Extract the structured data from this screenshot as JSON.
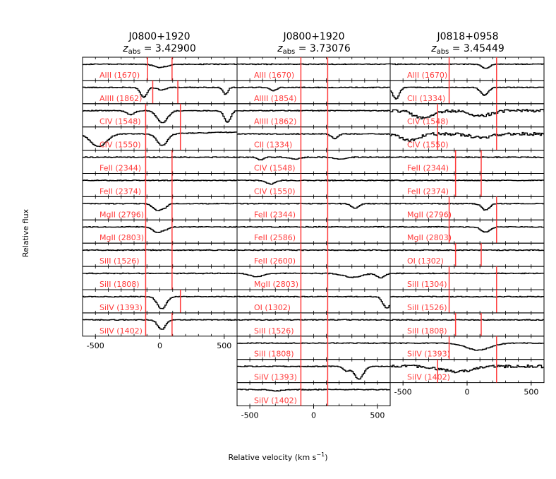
{
  "ylabel": "Relative flux",
  "xlabel": "Relative velocity (km s",
  "xlabel_sup": "−1",
  "xlabel_end": ")",
  "chart_data": [
    {
      "type": "line",
      "title_line1": "J0800+1920",
      "title_z_prefix": "z",
      "title_z_sub": "abs",
      "title_z_value": " = 3.42900",
      "xlim": [
        -600,
        600
      ],
      "xticks": [
        -500,
        0,
        500
      ],
      "xtick_labels": [
        "-500",
        "0",
        "500"
      ],
      "panels": [
        {
          "label": "AlII (1670)",
          "lines": [
            -95,
            95
          ],
          "absorptions": [
            {
              "v": -10,
              "depth": 0.25,
              "width": 40
            },
            {
              "v": 60,
              "depth": 0.1,
              "width": 20
            }
          ]
        },
        {
          "label": "AlIII (1862)",
          "lines": [
            -55,
            140
          ],
          "absorptions": [
            {
              "v": -130,
              "depth": 0.75,
              "width": 25
            },
            {
              "v": 10,
              "depth": 0.2,
              "width": 30
            },
            {
              "v": 505,
              "depth": 0.55,
              "width": 18
            }
          ]
        },
        {
          "label": "CIV (1548)",
          "lines": [
            -110,
            160
          ],
          "absorptions": [
            {
              "v": -230,
              "depth": 0.3,
              "width": 30
            },
            {
              "v": 15,
              "depth": 0.95,
              "width": 40
            },
            {
              "v": 520,
              "depth": 0.9,
              "width": 25
            }
          ]
        },
        {
          "label": "CIV (1550)",
          "lines": [
            -110,
            160
          ],
          "absorptions": [
            {
              "v": -480,
              "depth": 1.0,
              "width": 60
            },
            {
              "v": 15,
              "depth": 0.9,
              "width": 40
            }
          ],
          "slope": true
        },
        {
          "label": "FeII (2344)",
          "lines": [
            -110,
            95
          ],
          "absorptions": []
        },
        {
          "label": "FeII (2374)",
          "lines": [
            -110,
            95
          ],
          "absorptions": []
        },
        {
          "label": "MgII (2796)",
          "lines": [
            -110,
            95
          ],
          "absorptions": [
            {
              "v": -20,
              "depth": 0.55,
              "width": 35
            },
            {
              "v": 40,
              "depth": 0.2,
              "width": 20
            }
          ]
        },
        {
          "label": "MgII (2803)",
          "lines": [
            -110,
            95
          ],
          "absorptions": [
            {
              "v": -20,
              "depth": 0.45,
              "width": 35
            },
            {
              "v": 45,
              "depth": 0.15,
              "width": 20
            }
          ]
        },
        {
          "label": "SiII (1526)",
          "lines": [
            -110,
            95
          ],
          "absorptions": []
        },
        {
          "label": "SiII (1808)",
          "lines": [
            -110,
            95
          ],
          "absorptions": []
        },
        {
          "label": "SiIV (1393)",
          "lines": [
            -110,
            160
          ],
          "absorptions": [
            {
              "v": 10,
              "depth": 0.95,
              "width": 35
            }
          ]
        },
        {
          "label": "SiIV (1402)",
          "lines": [
            -110,
            95
          ],
          "absorptions": [
            {
              "v": 10,
              "depth": 0.75,
              "width": 30
            }
          ]
        }
      ]
    },
    {
      "type": "line",
      "title_line1": "J0800+1920",
      "title_z_prefix": "z",
      "title_z_sub": "abs",
      "title_z_value": " = 3.73076",
      "xlim": [
        -600,
        600
      ],
      "xticks": [
        -500,
        0,
        500
      ],
      "xtick_labels": [
        "-500",
        "0",
        "500"
      ],
      "panels": [
        {
          "label": "AlII (1670)",
          "lines": [
            -100,
            110
          ],
          "absorptions": []
        },
        {
          "label": "AlIII (1854)",
          "lines": [
            -100,
            110
          ],
          "absorptions": [
            {
              "v": -320,
              "depth": 0.25,
              "width": 25
            }
          ]
        },
        {
          "label": "AlIII (1862)",
          "lines": [
            -100,
            110
          ],
          "absorptions": []
        },
        {
          "label": "CII (1334)",
          "lines": [
            -100,
            110
          ],
          "absorptions": [
            {
              "v": 160,
              "depth": 0.35,
              "width": 25
            }
          ]
        },
        {
          "label": "CIV (1548)",
          "lines": [
            -100,
            110
          ],
          "absorptions": [
            {
              "v": -420,
              "depth": 0.2,
              "width": 25
            },
            {
              "v": -150,
              "depth": 0.15,
              "width": 40
            },
            {
              "v": 200,
              "depth": 0.15,
              "width": 40
            }
          ]
        },
        {
          "label": "CIV (1550)",
          "lines": [
            -100,
            110
          ],
          "absorptions": [
            {
              "v": -340,
              "depth": 0.3,
              "width": 30
            }
          ]
        },
        {
          "label": "FeII (2344)",
          "lines": [
            -100,
            110
          ],
          "absorptions": [
            {
              "v": 320,
              "depth": 0.35,
              "width": 30
            }
          ]
        },
        {
          "label": "FeII (2586)",
          "lines": [
            -100,
            110
          ],
          "absorptions": []
        },
        {
          "label": "FeII (2600)",
          "lines": [
            -100,
            110
          ],
          "absorptions": []
        },
        {
          "label": "MgII (2803)",
          "lines": [
            -100,
            110
          ],
          "absorptions": [
            {
              "v": -450,
              "depth": 0.25,
              "width": 50
            },
            {
              "v": 300,
              "depth": 0.3,
              "width": 70
            },
            {
              "v": 520,
              "depth": 0.35,
              "width": 30
            }
          ]
        },
        {
          "label": "OI (1302)",
          "lines": [
            -100,
            110
          ],
          "absorptions": [
            {
              "v": 570,
              "depth": 0.9,
              "width": 30
            }
          ]
        },
        {
          "label": "SiII (1526)",
          "lines": [
            -100,
            110
          ],
          "absorptions": []
        },
        {
          "label": "SiII (1808)",
          "lines": [
            -100,
            110
          ],
          "absorptions": []
        },
        {
          "label": "SiIV (1393)",
          "lines": [
            -100,
            110
          ],
          "absorptions": [
            {
              "v": 350,
              "depth": 1.0,
              "width": 35
            },
            {
              "v": 250,
              "depth": 0.35,
              "width": 25
            }
          ]
        },
        {
          "label": "SiIV (1402)",
          "lines": [
            -100,
            110
          ],
          "absorptions": [
            {
              "v": -300,
              "depth": 0.1,
              "width": 40
            }
          ]
        }
      ]
    },
    {
      "type": "line",
      "title_line1": "J0818+0958",
      "title_z_prefix": "z",
      "title_z_sub": "abs",
      "title_z_value": " = 3.45449",
      "xlim": [
        -600,
        600
      ],
      "xticks": [
        -500,
        0,
        500
      ],
      "xtick_labels": [
        "-500",
        "0",
        "500"
      ],
      "panels": [
        {
          "label": "AlII (1670)",
          "lines": [
            -140,
            230
          ],
          "absorptions": [
            {
              "v": 140,
              "depth": 0.3,
              "width": 30
            }
          ]
        },
        {
          "label": "CII (1334)",
          "lines": [
            -140,
            230
          ],
          "absorptions": [
            {
              "v": -560,
              "depth": 0.9,
              "width": 25
            },
            {
              "v": 130,
              "depth": 0.6,
              "width": 30
            }
          ]
        },
        {
          "label": "CIV (1548)",
          "lines": [
            -230,
            230
          ],
          "absorptions": [
            {
              "v": -350,
              "depth": 0.6,
              "width": 70
            },
            {
              "v": 100,
              "depth": 0.4,
              "width": 80
            }
          ],
          "noisy": true
        },
        {
          "label": "CIV (1550)",
          "lines": [
            -230,
            230
          ],
          "absorptions": [
            {
              "v": -450,
              "depth": 0.5,
              "width": 70
            },
            {
              "v": 100,
              "depth": 0.3,
              "width": 80
            }
          ],
          "noisy": true
        },
        {
          "label": "FeII (2344)",
          "lines": [
            -90,
            110
          ],
          "absorptions": []
        },
        {
          "label": "FeII (2374)",
          "lines": [
            -90,
            110
          ],
          "absorptions": []
        },
        {
          "label": "MgII (2796)",
          "lines": [
            -140,
            230
          ],
          "absorptions": [
            {
              "v": 140,
              "depth": 0.5,
              "width": 30
            }
          ]
        },
        {
          "label": "MgII (2803)",
          "lines": [
            -140,
            230
          ],
          "absorptions": [
            {
              "v": 140,
              "depth": 0.4,
              "width": 35
            }
          ]
        },
        {
          "label": "OI (1302)",
          "lines": [
            -90,
            110
          ],
          "absorptions": []
        },
        {
          "label": "SiII (1304)",
          "lines": [
            -140,
            230
          ],
          "absorptions": []
        },
        {
          "label": "SiII (1526)",
          "lines": [
            -140,
            230
          ],
          "absorptions": []
        },
        {
          "label": "SiII (1808)",
          "lines": [
            -90,
            110
          ],
          "absorptions": []
        },
        {
          "label": "SiIV (1393)",
          "lines": [
            -140,
            230
          ],
          "absorptions": [
            {
              "v": 80,
              "depth": 0.55,
              "width": 90
            }
          ]
        },
        {
          "label": "SiIV (1402)",
          "lines": [
            -230,
            230
          ],
          "absorptions": [
            {
              "v": -80,
              "depth": 0.4,
              "width": 120
            }
          ],
          "noisy": true
        }
      ]
    }
  ]
}
